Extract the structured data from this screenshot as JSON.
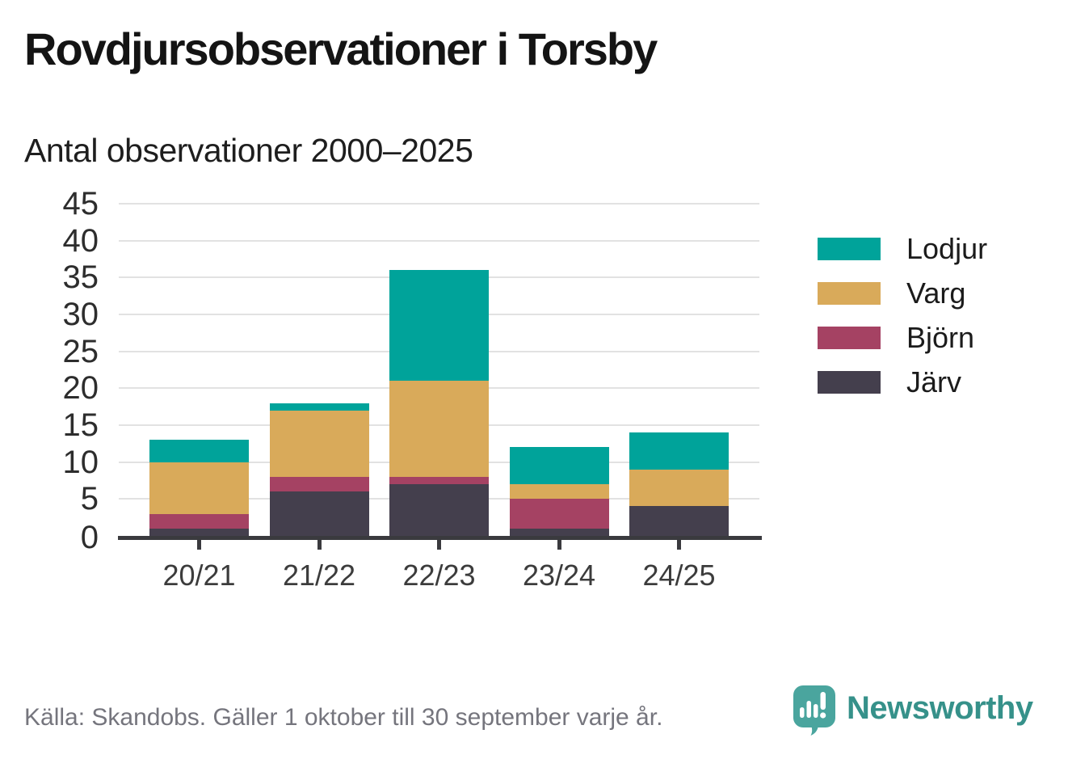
{
  "header": {
    "title": "Rovdjursobservationer i Torsby",
    "subtitle": "Antal observationer 2000–2025"
  },
  "chart_data": {
    "type": "bar",
    "stacked": true,
    "title": "Rovdjursobservationer i Torsby",
    "subtitle": "Antal observationer 2000–2025",
    "categories": [
      "20/21",
      "21/22",
      "22/23",
      "23/24",
      "24/25"
    ],
    "series": [
      {
        "name": "Järv",
        "color": "#443f4d",
        "values": [
          1,
          6,
          7,
          1,
          4
        ]
      },
      {
        "name": "Björn",
        "color": "#a54263",
        "values": [
          2,
          2,
          1,
          4,
          0
        ]
      },
      {
        "name": "Varg",
        "color": "#d9aa5a",
        "values": [
          7,
          9,
          13,
          2,
          5
        ]
      },
      {
        "name": "Lodjur",
        "color": "#00a39a",
        "values": [
          3,
          1,
          15,
          5,
          5
        ]
      }
    ],
    "totals": [
      13,
      18,
      36,
      10,
      14
    ],
    "legend_order": [
      "Lodjur",
      "Varg",
      "Björn",
      "Järv"
    ],
    "legend_position": "right",
    "xlabel": "",
    "ylabel": "",
    "ylim": [
      0,
      45
    ],
    "ytick_step": 5,
    "grid": true
  },
  "footer": {
    "source": "Källa: Skandobs. Gäller 1 oktober till 30 september varje år.",
    "brand": "Newsworthy"
  },
  "colors": {
    "logo_teal": "#4aa59e",
    "brand_teal": "#36918a",
    "axis": "#3a3a3e",
    "gridline": "#e2e2e2"
  }
}
